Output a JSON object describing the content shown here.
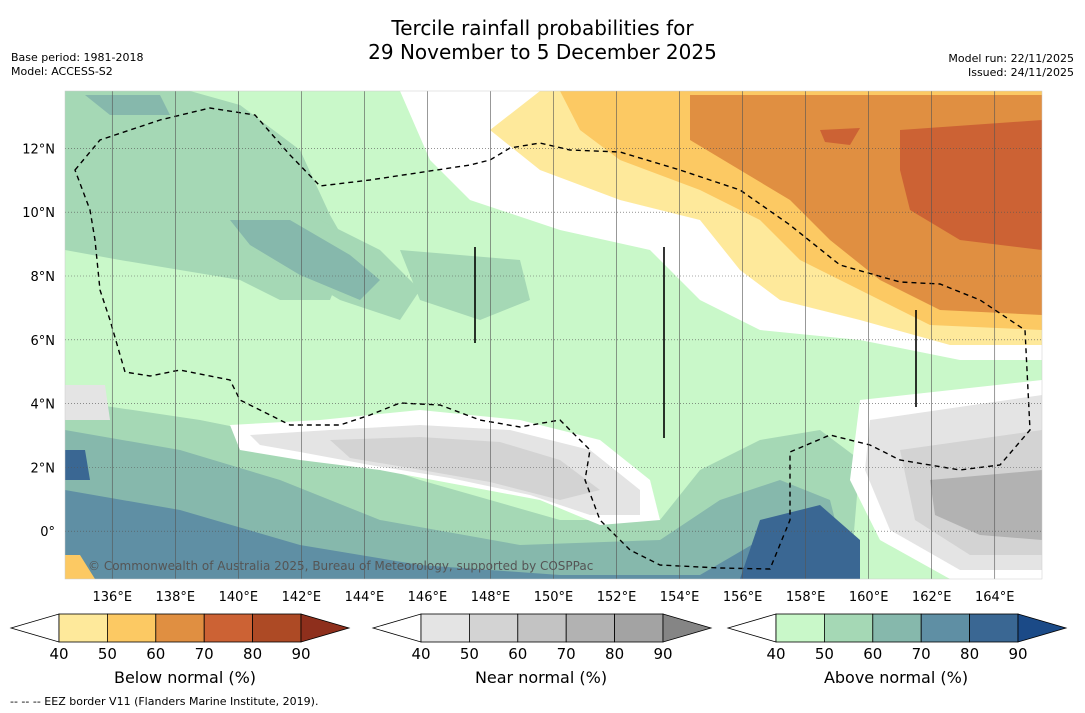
{
  "title": {
    "line1": "Tercile rainfall probabilities for",
    "line2": "29 November to 5 December 2025"
  },
  "meta_left": {
    "base_period": "Base period: 1981-2018",
    "model": "Model: ACCESS-S2"
  },
  "meta_right": {
    "model_run": "Model run: 22/11/2025",
    "issued": "Issued: 24/11/2025"
  },
  "map": {
    "lon_ticks": [
      "136°E",
      "138°E",
      "140°E",
      "142°E",
      "144°E",
      "146°E",
      "148°E",
      "150°E",
      "152°E",
      "154°E",
      "156°E",
      "158°E",
      "160°E",
      "162°E",
      "164°E"
    ],
    "lat_ticks": [
      "12°N",
      "10°N",
      "8°N",
      "6°N",
      "4°N",
      "2°N",
      "0°"
    ],
    "copyright": "© Commonwealth of Australia 2025, Bureau of Meteorology, supported by COSPPac",
    "lon_range": [
      134.5,
      165.5
    ],
    "lat_range": [
      -1.5,
      13.8
    ]
  },
  "colorbars": [
    {
      "label": "Below normal (%)",
      "ticks": [
        "40",
        "50",
        "60",
        "70",
        "80",
        "90"
      ],
      "colors": [
        "#ffffff",
        "#fee99b",
        "#fcc963",
        "#e08f41",
        "#cc6234",
        "#ad4a25",
        "#8e2f1c"
      ]
    },
    {
      "label": "Near normal (%)",
      "ticks": [
        "40",
        "50",
        "60",
        "70",
        "80",
        "90"
      ],
      "colors": [
        "#ffffff",
        "#e4e4e4",
        "#d3d3d3",
        "#c3c3c3",
        "#b2b2b2",
        "#a3a3a3",
        "#858585"
      ]
    },
    {
      "label": "Above normal (%)",
      "ticks": [
        "40",
        "50",
        "60",
        "70",
        "80",
        "90"
      ],
      "colors": [
        "#ffffff",
        "#c9f8c9",
        "#a5d8b5",
        "#86b8ac",
        "#5f8fa4",
        "#3a6793",
        "#1b4a87"
      ]
    }
  ],
  "footnote": "--  --  -- EEZ border V11 (Flanders Marine Institute, 2019)."
}
